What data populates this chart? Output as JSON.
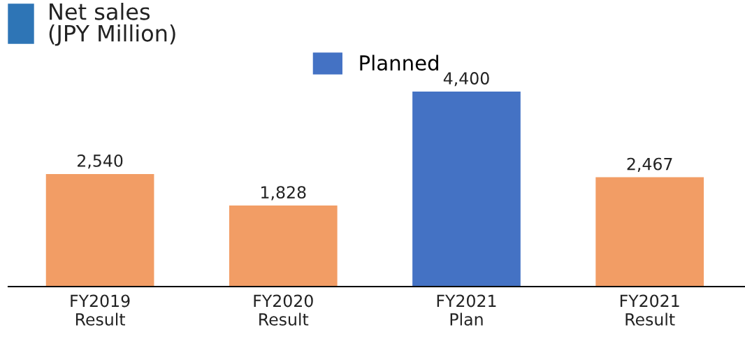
{
  "chart_data": {
    "type": "bar",
    "title": "Net sales\n(JPY Million)",
    "categories": [
      "FY2019\nResult",
      "FY2020\nResult",
      "FY2021\nPlan",
      "FY2021\nResult"
    ],
    "series": [
      {
        "color": "#f29d65",
        "values": [
          2540,
          1828,
          null,
          2467
        ],
        "value_labels": [
          "2,540",
          "1,828",
          null,
          "2,467"
        ]
      },
      {
        "name": "Planned",
        "color": "#4472c4",
        "values": [
          null,
          null,
          4400,
          null
        ],
        "value_labels": [
          null,
          null,
          "4,400",
          null
        ]
      }
    ],
    "legend": "top",
    "grid": false
  }
}
